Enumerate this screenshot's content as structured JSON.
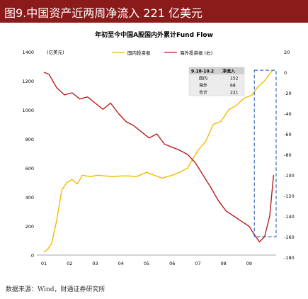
{
  "header": {
    "title": "图9.中国资产近两周净流入 221 亿美元"
  },
  "chart_data": {
    "type": "line",
    "title": "年初至今中国A股国内外累计Fund Flow",
    "left_unit_label": "(亿美元)",
    "x_tick_labels": [
      "01",
      "02",
      "03",
      "04",
      "05",
      "06",
      "07",
      "08",
      "09"
    ],
    "left_axis": {
      "ylim": [
        0,
        1400
      ],
      "ticks": [
        0,
        200,
        400,
        600,
        800,
        1000,
        1200,
        1400
      ]
    },
    "right_axis": {
      "ylim": [
        -180,
        20
      ],
      "ticks": [
        20,
        0,
        -20,
        -40,
        -60,
        -80,
        -100,
        -120,
        -140,
        -160,
        -180
      ]
    },
    "series": [
      {
        "name": "国内投资者",
        "axis": "left",
        "color": "#f5b800",
        "x": [
          1.0,
          1.15,
          1.3,
          1.5,
          1.7,
          1.9,
          2.1,
          2.3,
          2.5,
          2.8,
          3.1,
          3.4,
          3.7,
          4.0,
          4.3,
          4.6,
          5.0,
          5.3,
          5.6,
          6.0,
          6.3,
          6.6,
          7.0,
          7.3,
          7.6,
          7.9,
          8.2,
          8.5,
          8.8,
          9.1,
          9.3,
          9.6,
          9.9
        ],
        "values": [
          20,
          40,
          80,
          240,
          450,
          500,
          520,
          490,
          550,
          540,
          550,
          545,
          540,
          545,
          545,
          540,
          570,
          550,
          530,
          550,
          570,
          600,
          720,
          780,
          900,
          920,
          1000,
          1030,
          1080,
          1100,
          1150,
          1200,
          1270
        ]
      },
      {
        "name": "海外投资者 (右)",
        "axis": "right",
        "color": "#b81c1c",
        "x": [
          1.0,
          1.2,
          1.5,
          1.8,
          2.1,
          2.4,
          2.7,
          3.0,
          3.3,
          3.6,
          3.9,
          4.2,
          4.5,
          4.8,
          5.1,
          5.4,
          5.7,
          6.0,
          6.3,
          6.6,
          6.9,
          7.2,
          7.5,
          7.8,
          8.1,
          8.4,
          8.7,
          9.0,
          9.2,
          9.4,
          9.6,
          9.8,
          9.95
        ],
        "values": [
          0,
          -2,
          -15,
          -22,
          -20,
          -26,
          -24,
          -30,
          -36,
          -30,
          -40,
          -48,
          -52,
          -58,
          -64,
          -60,
          -70,
          -73,
          -76,
          -80,
          -88,
          -100,
          -112,
          -125,
          -135,
          -140,
          -145,
          -150,
          -158,
          -165,
          -160,
          -140,
          -100
        ]
      }
    ],
    "annotation_table": {
      "header": [
        "9.18-10.2",
        "净流入"
      ],
      "rows": [
        [
          "国内",
          "152"
        ],
        [
          "海外",
          "68"
        ],
        [
          "合计",
          "221"
        ]
      ]
    },
    "highlight_box": {
      "x_range": [
        9.2,
        10.05
      ],
      "y_range": [
        -160,
        2
      ],
      "style": "dashed"
    },
    "legend_position": "top"
  },
  "footer": {
    "source": "数据来源：Wind，财通证券研究所"
  }
}
